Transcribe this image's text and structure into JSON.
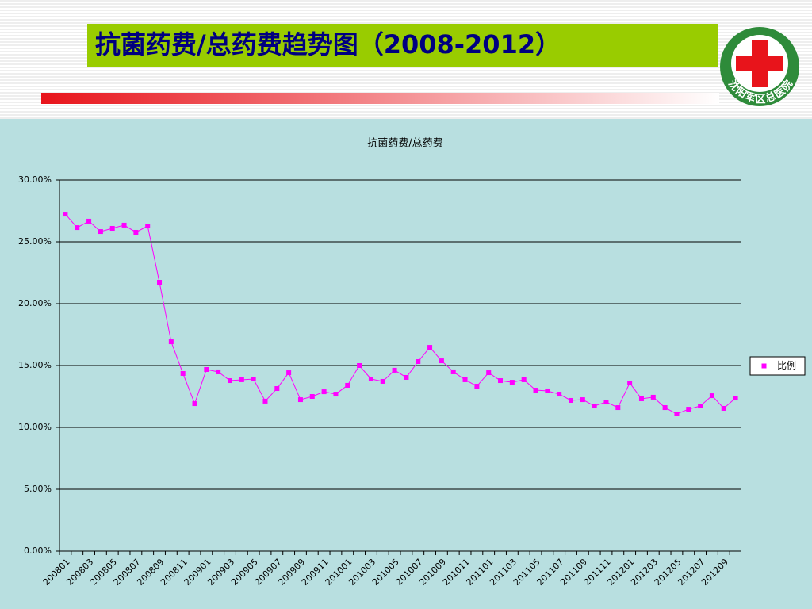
{
  "slide": {
    "title": "抗菌药费/总药费趋势图（2008-2012）",
    "logo_text": "沈阳军区总医院"
  },
  "chart_data": {
    "type": "line",
    "title": "抗菌药费/总药费",
    "categories": [
      "200801",
      null,
      "200803",
      null,
      "200805",
      null,
      "200807",
      null,
      "200809",
      null,
      "200811",
      null,
      "200901",
      null,
      "200903",
      null,
      "200905",
      null,
      "200907",
      null,
      "200909",
      null,
      "200911",
      null,
      "201001",
      null,
      "201003",
      null,
      "201005",
      null,
      "201007",
      null,
      "201009",
      null,
      "201011",
      null,
      "201101",
      null,
      "201103",
      null,
      "201105",
      null,
      "201107",
      null,
      "201109",
      null,
      "201111",
      null,
      "201201",
      null,
      "201203",
      null,
      "201205",
      null,
      "201207",
      null,
      "201209",
      null
    ],
    "series": [
      {
        "name": "比例",
        "color": "#ff00ff",
        "values": [
          27.24,
          26.15,
          26.67,
          25.83,
          26.09,
          26.35,
          25.77,
          26.28,
          21.73,
          16.92,
          14.36,
          11.92,
          14.68,
          14.49,
          13.78,
          13.85,
          13.91,
          12.12,
          13.14,
          14.42,
          12.24,
          12.5,
          12.88,
          12.69,
          13.4,
          15.0,
          13.91,
          13.72,
          14.62,
          14.04,
          15.32,
          16.47,
          15.38,
          14.49,
          13.85,
          13.33,
          14.42,
          13.78,
          13.65,
          13.85,
          13.01,
          12.95,
          12.69,
          12.18,
          12.24,
          11.73,
          12.05,
          11.6,
          13.59,
          12.31,
          12.44,
          11.6,
          11.09,
          11.47,
          11.73,
          12.56,
          11.54,
          12.37
        ]
      }
    ],
    "ylim": [
      0,
      30
    ],
    "yticks": [
      {
        "value": 0,
        "label": "0.00%"
      },
      {
        "value": 5,
        "label": "5.00%"
      },
      {
        "value": 10,
        "label": "10.00%"
      },
      {
        "value": 15,
        "label": "15.00%"
      },
      {
        "value": 20,
        "label": "20.00%"
      },
      {
        "value": 25,
        "label": "25.00%"
      },
      {
        "value": 30,
        "label": "30.00%"
      }
    ],
    "grid": true,
    "legend": "right"
  }
}
